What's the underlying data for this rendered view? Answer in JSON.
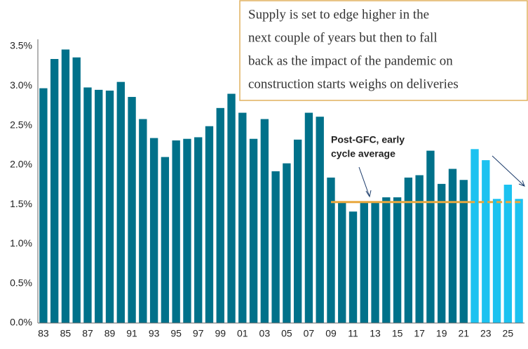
{
  "chart_data": {
    "type": "bar",
    "categories": [
      "83",
      null,
      "85",
      null,
      "87",
      null,
      "89",
      null,
      "91",
      null,
      "93",
      null,
      "95",
      null,
      "97",
      null,
      "99",
      null,
      "01",
      null,
      "03",
      null,
      "05",
      null,
      "07",
      null,
      "09",
      null,
      "11",
      null,
      "13",
      null,
      "15",
      null,
      "17",
      null,
      "19",
      null,
      "21",
      null,
      "23",
      null,
      "25",
      null
    ],
    "values": [
      2.97,
      3.34,
      3.46,
      3.36,
      2.98,
      2.95,
      2.94,
      3.05,
      2.86,
      2.58,
      2.34,
      2.1,
      2.31,
      2.33,
      2.35,
      2.49,
      2.72,
      2.9,
      2.66,
      2.33,
      2.58,
      1.92,
      2.02,
      2.32,
      2.66,
      2.61,
      1.84,
      1.53,
      1.41,
      1.52,
      1.52,
      1.59,
      1.59,
      1.84,
      1.87,
      2.18,
      1.76,
      1.95,
      1.81,
      2.2,
      2.06,
      1.57,
      1.75,
      1.57
    ],
    "colors": [
      "#00718a",
      "#00718a",
      "#00718a",
      "#00718a",
      "#00718a",
      "#00718a",
      "#00718a",
      "#00718a",
      "#00718a",
      "#00718a",
      "#00718a",
      "#00718a",
      "#00718a",
      "#00718a",
      "#00718a",
      "#00718a",
      "#00718a",
      "#00718a",
      "#00718a",
      "#00718a",
      "#00718a",
      "#00718a",
      "#00718a",
      "#00718a",
      "#00718a",
      "#00718a",
      "#00718a",
      "#00718a",
      "#00718a",
      "#00718a",
      "#00718a",
      "#00718a",
      "#00718a",
      "#00718a",
      "#00718a",
      "#00718a",
      "#00718a",
      "#00718a",
      "#00718a",
      "#1cc2f0",
      "#1cc2f0",
      "#1cc2f0",
      "#1cc2f0",
      "#1cc2f0"
    ],
    "ylim": [
      0,
      3.5
    ],
    "yticks": [
      {
        "value": 0,
        "label": "0.0%"
      },
      {
        "value": 0.5,
        "label": "0.5%"
      },
      {
        "value": 1,
        "label": "1.0%"
      },
      {
        "value": 1.5,
        "label": "1.5%"
      },
      {
        "value": 2,
        "label": "2.0%"
      },
      {
        "value": 2.5,
        "label": "2.5%"
      },
      {
        "value": 3,
        "label": "3.0%"
      },
      {
        "value": 3.5,
        "label": "3.5%"
      }
    ],
    "reference_line": {
      "value": 1.53,
      "color": "#e8a83e"
    },
    "annotation": [
      "Post-GFC, early",
      "cycle average"
    ],
    "callout": [
      "Supply is set to edge higher in the",
      "next couple of years but then to fall",
      "back as the impact of the pandemic on",
      "construction starts weighs on deliveries"
    ]
  }
}
